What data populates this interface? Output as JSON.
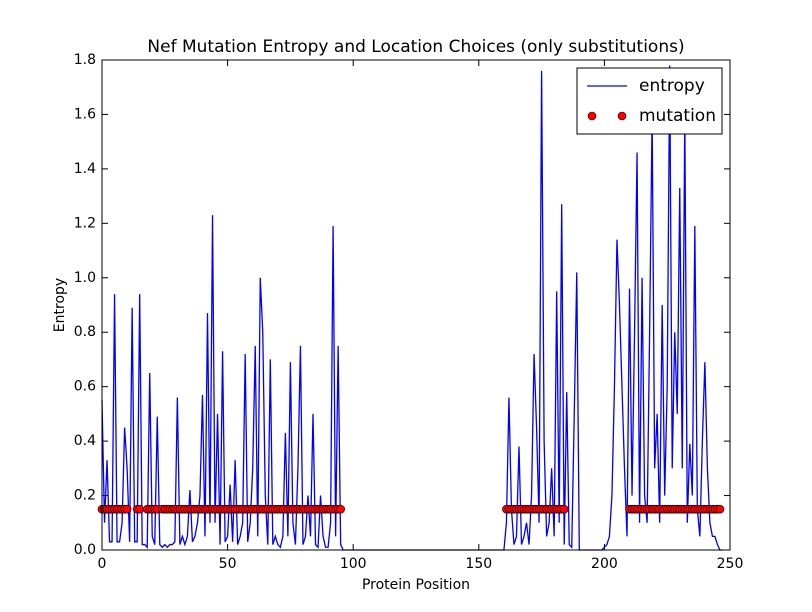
{
  "chart_data": {
    "type": "line",
    "title": "Nef Mutation Entropy and Location Choices (only substitutions)",
    "xlabel": "Protein Position",
    "ylabel": "Entropy",
    "xlim": [
      0,
      250
    ],
    "ylim": [
      0,
      1.8
    ],
    "xticks": [
      0,
      50,
      100,
      150,
      200,
      250
    ],
    "yticks": [
      {
        "value": 0,
        "label": "0.0"
      },
      {
        "value": 0.2,
        "label": "0.2"
      },
      {
        "value": 0.4,
        "label": "0.4"
      },
      {
        "value": 0.6,
        "label": "0.6"
      },
      {
        "value": 0.8,
        "label": "0.8"
      },
      {
        "value": 1,
        "label": "1.0"
      },
      {
        "value": 1.2,
        "label": "1.2"
      },
      {
        "value": 1.4,
        "label": "1.4"
      },
      {
        "value": 1.6,
        "label": "1.6"
      },
      {
        "value": 1.8,
        "label": "1.8"
      }
    ],
    "legend": "upper right",
    "grid": false,
    "series": [
      {
        "name": "entropy",
        "type": "line",
        "color": "#0000ff",
        "x": [
          0,
          1,
          2,
          3,
          4,
          5,
          6,
          7,
          8,
          9,
          10,
          11,
          12,
          13,
          14,
          15,
          16,
          17,
          18,
          19,
          20,
          21,
          22,
          23,
          24,
          25,
          26,
          27,
          28,
          29,
          30,
          31,
          32,
          33,
          34,
          35,
          36,
          37,
          38,
          39,
          40,
          41,
          42,
          43,
          44,
          45,
          46,
          47,
          48,
          49,
          50,
          51,
          52,
          53,
          54,
          55,
          56,
          57,
          58,
          59,
          60,
          61,
          62,
          63,
          64,
          65,
          66,
          67,
          68,
          69,
          70,
          71,
          72,
          73,
          74,
          75,
          76,
          77,
          78,
          79,
          80,
          81,
          82,
          83,
          84,
          85,
          86,
          87,
          88,
          89,
          90,
          91,
          92,
          93,
          94,
          95,
          96,
          97,
          98,
          99,
          100,
          101,
          102,
          103,
          104,
          105,
          106,
          107,
          108,
          109,
          110,
          111,
          112,
          113,
          114,
          115,
          116,
          117,
          118,
          119,
          120,
          121,
          122,
          123,
          124,
          125,
          126,
          127,
          128,
          129,
          130,
          131,
          132,
          133,
          134,
          135,
          136,
          137,
          138,
          139,
          140,
          141,
          142,
          143,
          144,
          145,
          146,
          147,
          148,
          149,
          150,
          151,
          152,
          153,
          154,
          155,
          156,
          157,
          158,
          159,
          160,
          161,
          162,
          163,
          164,
          165,
          166,
          167,
          168,
          169,
          170,
          171,
          172,
          173,
          174,
          175,
          176,
          177,
          178,
          179,
          180,
          181,
          182,
          183,
          184,
          185,
          186,
          187,
          188,
          189,
          190,
          191,
          192,
          193,
          194,
          195,
          196,
          197,
          198,
          199,
          200,
          201,
          202,
          203,
          204,
          205,
          206,
          207,
          208,
          209,
          210,
          211,
          212,
          213,
          214,
          215,
          216,
          217,
          218,
          219,
          220,
          221,
          222,
          223,
          224,
          225,
          226,
          227,
          228,
          229,
          230,
          231,
          232,
          233,
          234,
          235,
          236,
          237,
          238,
          239,
          240,
          241,
          242,
          243,
          244,
          245,
          246,
          247
        ],
        "values": [
          0.55,
          0.1,
          0.33,
          0.03,
          0.03,
          0.94,
          0.03,
          0.03,
          0.1,
          0.45,
          0.3,
          0.03,
          0.89,
          0.03,
          0.03,
          0.94,
          0.02,
          0.02,
          0.01,
          0.65,
          0.05,
          0.02,
          0.49,
          0.02,
          0.01,
          0.02,
          0.01,
          0.02,
          0.02,
          0.03,
          0.56,
          0.02,
          0.05,
          0.02,
          0.05,
          0.22,
          0.03,
          0.05,
          0.1,
          0.2,
          0.57,
          0.05,
          0.87,
          0.1,
          1.23,
          0.1,
          0.5,
          0.02,
          0.73,
          0.03,
          0.05,
          0.24,
          0.03,
          0.33,
          0.02,
          0.05,
          0.1,
          0.72,
          0.03,
          0.1,
          0.3,
          0.75,
          0.05,
          1.0,
          0.8,
          0.2,
          0.02,
          0.7,
          0.02,
          0.05,
          0.02,
          0.01,
          0.05,
          0.43,
          0.05,
          0.69,
          0.1,
          0.02,
          0.3,
          0.75,
          0.02,
          0.05,
          0.2,
          0.05,
          0.5,
          0.02,
          0.01,
          0.2,
          0.05,
          0.01,
          0.01,
          0.1,
          1.19,
          0.05,
          0.75,
          0.02,
          0,
          0,
          0,
          0,
          0,
          0,
          0,
          0,
          0,
          0,
          0,
          0,
          0,
          0,
          0,
          0,
          0,
          0,
          0,
          0,
          0,
          0,
          0,
          0,
          0,
          0,
          0,
          0,
          0,
          0,
          0,
          0,
          0,
          0,
          0,
          0,
          0,
          0,
          0,
          0,
          0,
          0,
          0,
          0,
          0,
          0,
          0,
          0,
          0,
          0,
          0,
          0,
          0,
          0,
          0,
          0,
          0,
          0,
          0,
          0,
          0,
          0,
          0,
          0,
          0,
          0.1,
          0.56,
          0.15,
          0.02,
          0.05,
          0.38,
          0.02,
          0.05,
          0.1,
          0.02,
          0.2,
          0.72,
          0.45,
          0.1,
          1.76,
          0.4,
          0.05,
          0.1,
          0.3,
          0.05,
          0.95,
          0.1,
          1.27,
          0.02,
          0.58,
          0.02,
          0.01,
          0.5,
          1.02,
          0,
          0,
          0,
          0,
          0,
          0,
          0,
          0,
          0,
          0,
          0.01,
          0.02,
          0.05,
          0.2,
          0.6,
          1.14,
          0.9,
          0.6,
          0.3,
          0.05,
          0.96,
          0.2,
          0.8,
          1.46,
          0.1,
          1.0,
          0.2,
          0.1,
          0.8,
          1.6,
          0.3,
          0.5,
          0.1,
          0.9,
          0.2,
          0.6,
          1.78,
          0.3,
          0.8,
          0.5,
          1.33,
          0.3,
          1.6,
          0.1,
          0.39,
          0.2,
          1.19,
          0.15,
          0.05,
          0.4,
          0.69,
          0.3,
          0.1,
          0.05,
          0.05,
          0.02,
          0,
          0
        ]
      },
      {
        "name": "mutation",
        "type": "scatter",
        "color": "#ff0000",
        "x": [
          0,
          1,
          2,
          3,
          4,
          5,
          6,
          7,
          8,
          9,
          10,
          14,
          15,
          18,
          19,
          20,
          21,
          22,
          24,
          25,
          26,
          27,
          28,
          29,
          30,
          31,
          32,
          33,
          34,
          35,
          36,
          37,
          38,
          39,
          40,
          41,
          42,
          43,
          44,
          45,
          46,
          47,
          48,
          49,
          50,
          51,
          52,
          53,
          54,
          55,
          56,
          57,
          58,
          59,
          60,
          61,
          62,
          63,
          64,
          65,
          66,
          67,
          68,
          69,
          70,
          71,
          72,
          73,
          74,
          75,
          76,
          77,
          78,
          79,
          80,
          81,
          82,
          83,
          84,
          85,
          86,
          87,
          88,
          89,
          90,
          91,
          92,
          93,
          94,
          95,
          161,
          162,
          163,
          164,
          165,
          166,
          167,
          168,
          169,
          170,
          171,
          172,
          173,
          174,
          175,
          176,
          177,
          178,
          179,
          180,
          181,
          182,
          183,
          184,
          210,
          211,
          212,
          213,
          214,
          215,
          216,
          217,
          218,
          219,
          220,
          221,
          222,
          223,
          224,
          225,
          226,
          227,
          228,
          229,
          230,
          231,
          232,
          233,
          234,
          235,
          236,
          237,
          238,
          239,
          240,
          241,
          242,
          243,
          244,
          245,
          246
        ],
        "values": [
          0.15,
          0.15,
          0.15,
          0.15,
          0.15,
          0.15,
          0.15,
          0.15,
          0.15,
          0.15,
          0.15,
          0.15,
          0.15,
          0.15,
          0.15,
          0.15,
          0.15,
          0.15,
          0.15,
          0.15,
          0.15,
          0.15,
          0.15,
          0.15,
          0.15,
          0.15,
          0.15,
          0.15,
          0.15,
          0.15,
          0.15,
          0.15,
          0.15,
          0.15,
          0.15,
          0.15,
          0.15,
          0.15,
          0.15,
          0.15,
          0.15,
          0.15,
          0.15,
          0.15,
          0.15,
          0.15,
          0.15,
          0.15,
          0.15,
          0.15,
          0.15,
          0.15,
          0.15,
          0.15,
          0.15,
          0.15,
          0.15,
          0.15,
          0.15,
          0.15,
          0.15,
          0.15,
          0.15,
          0.15,
          0.15,
          0.15,
          0.15,
          0.15,
          0.15,
          0.15,
          0.15,
          0.15,
          0.15,
          0.15,
          0.15,
          0.15,
          0.15,
          0.15,
          0.15,
          0.15,
          0.15,
          0.15,
          0.15,
          0.15,
          0.15,
          0.15,
          0.15,
          0.15,
          0.15,
          0.15,
          0.15,
          0.15,
          0.15,
          0.15,
          0.15,
          0.15,
          0.15,
          0.15,
          0.15,
          0.15,
          0.15,
          0.15,
          0.15,
          0.15,
          0.15,
          0.15,
          0.15,
          0.15,
          0.15,
          0.15,
          0.15,
          0.15,
          0.15,
          0.15,
          0.15,
          0.15,
          0.15,
          0.15,
          0.15,
          0.15,
          0.15,
          0.15,
          0.15,
          0.15,
          0.15,
          0.15,
          0.15,
          0.15,
          0.15,
          0.15,
          0.15,
          0.15,
          0.15,
          0.15,
          0.15,
          0.15,
          0.15,
          0.15,
          0.15,
          0.15,
          0.15,
          0.15,
          0.15,
          0.15,
          0.15,
          0.15,
          0.15,
          0.15,
          0.15,
          0.15,
          0.15
        ]
      }
    ]
  }
}
